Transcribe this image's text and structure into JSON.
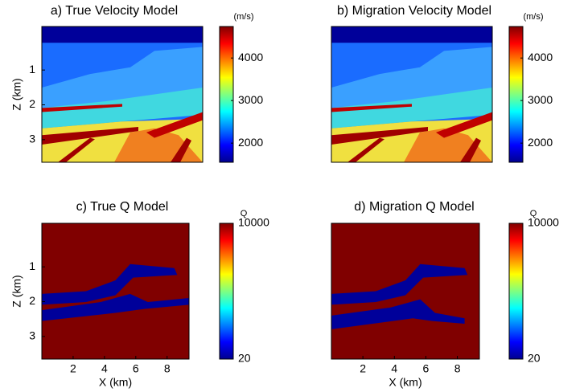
{
  "chart_data": [
    {
      "type": "heatmap",
      "title": "a) True Velocity Model",
      "ylabel": "Z (km)",
      "xlim": [
        0,
        9.2
      ],
      "ylim": [
        -0.25,
        3.65
      ],
      "y_reversed": true,
      "yticks": [
        1,
        2,
        3
      ],
      "colorbar": {
        "label": "(m/s)",
        "lim": [
          1550,
          4740
        ],
        "ticks": [
          2000,
          3000,
          4000
        ]
      }
    },
    {
      "type": "heatmap",
      "title": "b) Migration Velocity Model",
      "xlim": [
        0,
        9.2
      ],
      "ylim": [
        -0.25,
        3.65
      ],
      "y_reversed": true,
      "colorbar": {
        "label": "(m/s)",
        "lim": [
          1550,
          4740
        ],
        "ticks": [
          2000,
          3000,
          4000
        ]
      }
    },
    {
      "type": "heatmap",
      "title": "c) True Q Model",
      "xlabel": "X (km)",
      "ylabel": "Z (km)",
      "xlim": [
        0,
        9.4
      ],
      "xticks": [
        2,
        4,
        6,
        8
      ],
      "ylim": [
        -0.25,
        3.65
      ],
      "y_reversed": true,
      "yticks": [
        1,
        2,
        3
      ],
      "colorbar": {
        "label": "Q",
        "lim": [
          20,
          10000
        ],
        "ticks": [
          20,
          10000
        ]
      }
    },
    {
      "type": "heatmap",
      "title": "d) Migration Q Model",
      "xlabel": "X (km)",
      "xlim": [
        0,
        9.4
      ],
      "xticks": [
        2,
        4,
        6,
        8
      ],
      "ylim": [
        -0.25,
        3.65
      ],
      "y_reversed": true,
      "colorbar": {
        "label": "Q",
        "lim": [
          20,
          10000
        ],
        "ticks": [
          20,
          10000
        ]
      }
    }
  ]
}
